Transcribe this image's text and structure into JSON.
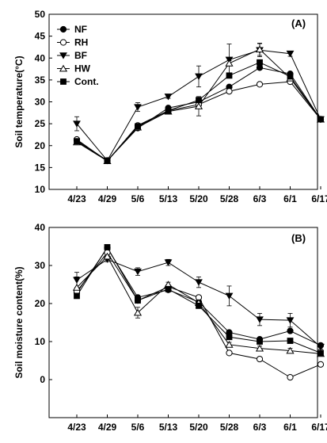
{
  "chart_data": [
    {
      "type": "line",
      "panel_label": "(A)",
      "ylabel": "Soil temperature(°C)",
      "xlabel": "",
      "categories": [
        "4/23",
        "4/29",
        "5/6",
        "5/13",
        "5/20",
        "5/28",
        "6/3",
        "6/1",
        "6/17"
      ],
      "ylim": [
        10,
        50
      ],
      "yticks": [
        10,
        15,
        20,
        25,
        30,
        35,
        40,
        45,
        50
      ],
      "legend": "top-left",
      "grid": false,
      "series": [
        {
          "name": "NF",
          "marker": "circle-filled",
          "values": [
            21.2,
            16.6,
            24.0,
            28.6,
            30.0,
            33.4,
            37.8,
            36.4,
            26.0
          ]
        },
        {
          "name": "RH",
          "marker": "circle-open",
          "values": [
            21.4,
            16.5,
            24.6,
            28.0,
            29.4,
            32.4,
            34.0,
            34.6,
            26.0
          ]
        },
        {
          "name": "BF",
          "marker": "triangle-down-filled",
          "values": [
            25.0,
            16.6,
            28.8,
            31.2,
            35.8,
            39.6,
            41.8,
            41.0,
            26.0
          ]
        },
        {
          "name": "HW",
          "marker": "triangle-up-open",
          "values": [
            20.8,
            16.5,
            24.2,
            27.8,
            29.0,
            38.8,
            42.0,
            35.4,
            26.0
          ]
        },
        {
          "name": "Cont.",
          "marker": "square-filled",
          "values": [
            21.0,
            16.5,
            24.4,
            28.0,
            30.4,
            36.0,
            39.0,
            35.8,
            26.0
          ]
        }
      ],
      "error_bars": {
        "BF": [
          1.6,
          0.4,
          1.0,
          0.4,
          2.4,
          3.6,
          1.5,
          0.6,
          0.3
        ],
        "HW": [
          0.6,
          0.3,
          0.5,
          0.5,
          2.2,
          0.6,
          1.4,
          0.6,
          0.3
        ]
      }
    },
    {
      "type": "line",
      "panel_label": "(B)",
      "ylabel": "Soil moisture content(%)",
      "xlabel": "",
      "categories": [
        "4/23",
        "4/29",
        "5/6",
        "5/13",
        "5/20",
        "5/28",
        "6/3",
        "6/1",
        "6/17"
      ],
      "ylim": [
        -10,
        40
      ],
      "yticks": [
        0,
        10,
        20,
        30,
        40
      ],
      "grid": false,
      "series": [
        {
          "name": "NF",
          "marker": "circle-filled",
          "values": [
            22.8,
            34.6,
            21.6,
            23.6,
            20.4,
            12.4,
            10.6,
            12.8,
            9.0
          ]
        },
        {
          "name": "RH",
          "marker": "circle-open",
          "values": [
            23.2,
            33.4,
            20.8,
            24.4,
            21.6,
            7.0,
            5.4,
            0.6,
            4.0
          ]
        },
        {
          "name": "BF",
          "marker": "triangle-down-filled",
          "values": [
            26.2,
            31.6,
            28.4,
            30.8,
            25.6,
            22.0,
            15.8,
            15.6,
            8.6
          ]
        },
        {
          "name": "HW",
          "marker": "triangle-up-open",
          "values": [
            24.2,
            32.4,
            17.6,
            25.0,
            20.2,
            9.2,
            8.2,
            7.6,
            6.8
          ]
        },
        {
          "name": "Cont.",
          "marker": "square-filled",
          "values": [
            22.0,
            34.8,
            20.8,
            23.8,
            19.4,
            11.2,
            10.0,
            10.2,
            7.0
          ]
        }
      ],
      "error_bars": {
        "BF": [
          2.0,
          0.6,
          1.0,
          0.8,
          1.4,
          2.6,
          1.6,
          1.8,
          0.6
        ],
        "HW": [
          2.8,
          0.6,
          1.4,
          0.6,
          1.0,
          0.6,
          0.6,
          0.6,
          0.6
        ]
      }
    }
  ]
}
